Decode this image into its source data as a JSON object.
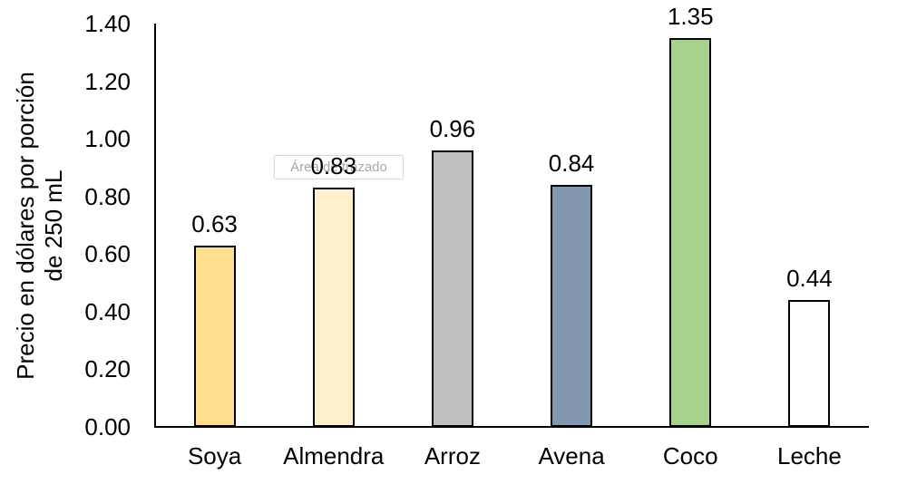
{
  "tooltip": {
    "label": "Área de trazado"
  },
  "chart_data": {
    "type": "bar",
    "title": "",
    "categories": [
      "Soya",
      "Almendra",
      "Arroz",
      "Avena",
      "Coco",
      "Leche"
    ],
    "values": [
      0.63,
      0.83,
      0.96,
      0.84,
      1.35,
      0.44
    ],
    "value_labels": [
      "0.63",
      "0.83",
      "0.96",
      "0.84",
      "1.35",
      "0.44"
    ],
    "bar_colors": [
      "#FDDF8D",
      "#FFF0CC",
      "#BFBFBF",
      "#8497B0",
      "#A9D18E",
      "#FFFFFF"
    ],
    "bar_border_color": "#000000",
    "xlabel": "",
    "ylabel": "Precio en dólares por porción de 250 mL",
    "ylabel_lines": [
      "Precio en dólares por porción",
      "de 250 mL"
    ],
    "ylim": [
      0,
      1.4
    ],
    "ytick_labels": [
      "0.00",
      "0.20",
      "0.40",
      "0.60",
      "0.80",
      "1.00",
      "1.20",
      "1.40"
    ],
    "grid": false,
    "legend": false,
    "axis_color": "#000000",
    "text_color": "#000000",
    "background": "#ffffff"
  }
}
